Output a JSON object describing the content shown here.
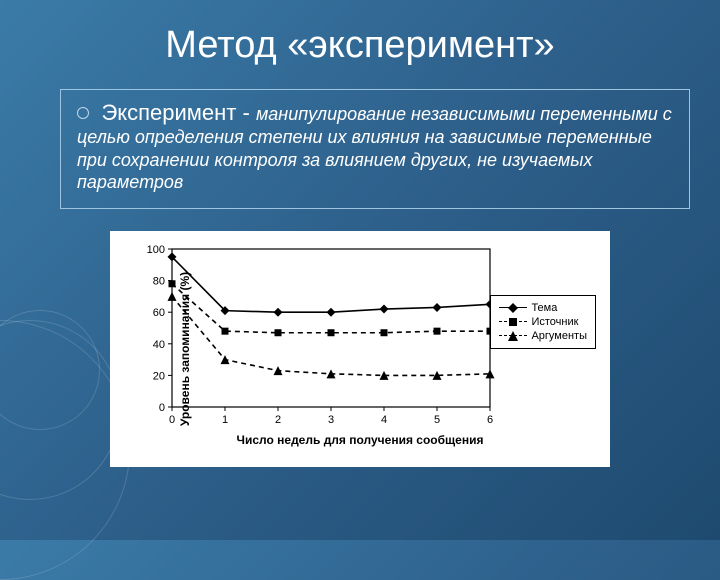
{
  "title": "Метод «эксперимент»",
  "definition": {
    "lead": "Эксперимент - ",
    "rest": "манипулирование независимыми переменными с целью определения степени их влияния на зависимые переменные при сохранении контроля за влиянием других, не изучаемых параметров"
  },
  "chart": {
    "type": "line",
    "xlabel": "Число недель для получения сообщения",
    "ylabel": "Уровень запоминания (%)",
    "x_ticks": [
      0,
      1,
      2,
      3,
      4,
      5,
      6
    ],
    "y_ticks": [
      0,
      20,
      40,
      60,
      80,
      100
    ],
    "xlim": [
      0,
      6
    ],
    "ylim": [
      0,
      100
    ],
    "background_color": "#ffffff",
    "axis_color": "#000000",
    "label_fontsize": 12,
    "tick_fontsize": 11,
    "series": [
      {
        "name": "Тема",
        "marker": "diamond",
        "dash": "solid",
        "color": "#000000",
        "x": [
          0,
          1,
          2,
          3,
          4,
          5,
          6
        ],
        "y": [
          95,
          61,
          60,
          60,
          62,
          63,
          65
        ]
      },
      {
        "name": "Источник",
        "marker": "square",
        "dash": "dash",
        "color": "#000000",
        "x": [
          0,
          1,
          2,
          3,
          4,
          5,
          6
        ],
        "y": [
          78,
          48,
          47,
          47,
          47,
          48,
          48
        ]
      },
      {
        "name": "Аргументы",
        "marker": "triangle",
        "dash": "dash",
        "color": "#000000",
        "x": [
          0,
          1,
          2,
          3,
          4,
          5,
          6
        ],
        "y": [
          70,
          30,
          23,
          21,
          20,
          20,
          21
        ]
      }
    ],
    "legend": [
      "Тема",
      "Источник",
      "Аргументы"
    ]
  }
}
